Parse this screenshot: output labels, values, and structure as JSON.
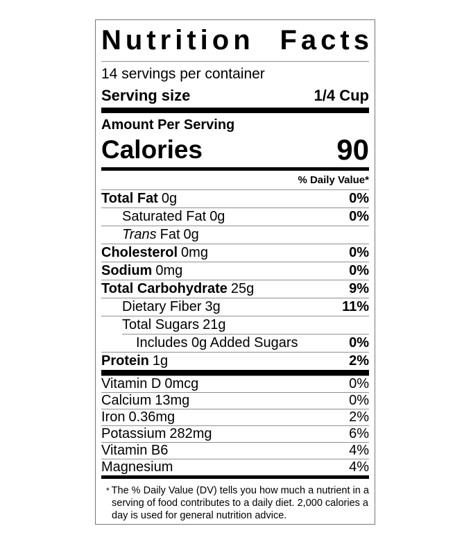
{
  "label": {
    "title": "Nutrition Facts",
    "title_words": [
      "Nutrition",
      "Facts"
    ],
    "servings_per_container": "14 servings per container",
    "serving_size_label": "Serving size",
    "serving_size_value": "1/4 Cup",
    "amount_per_serving": "Amount Per Serving",
    "calories_label": "Calories",
    "calories_value": "90",
    "daily_value_header": "% Daily Value*",
    "nutrients": [
      {
        "name": "Total Fat",
        "amount": "0g",
        "dv": "0%"
      },
      {
        "name": "Saturated Fat",
        "amount": "0g",
        "dv": "0%"
      },
      {
        "name_italic": "Trans",
        "name": "Fat",
        "amount": "0g",
        "dv": ""
      },
      {
        "name": "Cholesterol",
        "amount": "0mg",
        "dv": "0%"
      },
      {
        "name": "Sodium",
        "amount": "0mg",
        "dv": "0%"
      },
      {
        "name": "Total Carbohydrate",
        "amount": "25g",
        "dv": "9%"
      },
      {
        "name": "Dietary Fiber",
        "amount": "3g",
        "dv": "11%"
      },
      {
        "name": "Total Sugars",
        "amount": "21g",
        "dv": ""
      },
      {
        "name": "Includes 0g Added Sugars",
        "amount": "",
        "dv": "0%"
      },
      {
        "name": "Protein",
        "amount": "1g",
        "dv": "2%"
      }
    ],
    "vitamins": [
      {
        "name": "Vitamin D",
        "amount": "0mcg",
        "dv": "0%"
      },
      {
        "name": "Calcium",
        "amount": "13mg",
        "dv": "0%"
      },
      {
        "name": "Iron",
        "amount": "0.36mg",
        "dv": "2%"
      },
      {
        "name": "Potassium",
        "amount": "282mg",
        "dv": "6%"
      },
      {
        "name": "Vitamin B6",
        "amount": "",
        "dv": "4%"
      },
      {
        "name": "Magnesium",
        "amount": "",
        "dv": "4%"
      }
    ],
    "footnote_marker": "*",
    "footnote": "The % Daily Value (DV) tells you how much a nutrient in a serving of food contributes to a daily diet. 2,000 calories a day is used for general nutrition advice."
  }
}
